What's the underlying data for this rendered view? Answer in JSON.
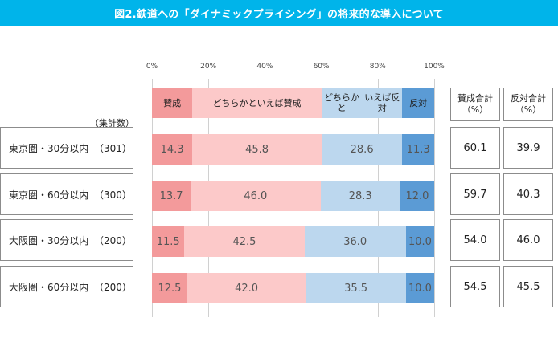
{
  "title": "図2.鉄道への「ダイナミックプライシング」の将来的な導入について",
  "sample_header": "（集計数）",
  "colors": {
    "title_bg": "#00b4ea",
    "agree": "#f39a9b",
    "lean_agree": "#fcc9c9",
    "lean_oppose": "#bcd7ee",
    "oppose": "#5b9bd5"
  },
  "summary_headers": [
    {
      "line1": "賛成合計",
      "line2": "（%）"
    },
    {
      "line1": "反対合計",
      "line2": "（%）"
    }
  ],
  "chart_data": {
    "type": "bar",
    "orientation": "horizontal",
    "stacked": true,
    "title": "図2.鉄道への「ダイナミックプライシング」の将来的な導入について",
    "xlim": [
      0,
      100
    ],
    "xticks": [
      "0%",
      "20%",
      "40%",
      "60%",
      "80%",
      "100%"
    ],
    "categories": [
      {
        "name": "東京圏・30分以内",
        "n": "（301）"
      },
      {
        "name": "東京圏・60分以内",
        "n": "（300）"
      },
      {
        "name": "大阪圏・30分以内",
        "n": "（200）"
      },
      {
        "name": "大阪圏・60分以内",
        "n": "（200）"
      }
    ],
    "series": [
      {
        "name": "賛成",
        "legend_lines": [
          "賛成"
        ],
        "values": [
          14.3,
          13.7,
          11.5,
          12.5
        ],
        "color": "#f39a9b"
      },
      {
        "name": "どちらかといえば賛成",
        "legend_lines": [
          "どちらかと",
          "いえば賛成"
        ],
        "values": [
          45.8,
          46.0,
          42.5,
          42.0
        ],
        "color": "#fcc9c9"
      },
      {
        "name": "どちらかといえば反対",
        "legend_lines": [
          "どちらかと",
          "いえば反対"
        ],
        "values": [
          28.6,
          28.3,
          36.0,
          35.5
        ],
        "color": "#bcd7ee"
      },
      {
        "name": "反対",
        "legend_lines": [
          "反対"
        ],
        "values": [
          11.3,
          12.0,
          10.0,
          10.0
        ],
        "color": "#5b9bd5"
      }
    ],
    "labels": [
      [
        "14.3",
        "45.8",
        "28.6",
        "11.3"
      ],
      [
        "13.7",
        "46.0",
        "28.3",
        "12.0"
      ],
      [
        "11.5",
        "42.5",
        "36.0",
        "10.0"
      ],
      [
        "12.5",
        "42.0",
        "35.5",
        "10.0"
      ]
    ],
    "totals": {
      "agree": [
        "60.1",
        "59.7",
        "54.0",
        "54.5"
      ],
      "oppose": [
        "39.9",
        "40.3",
        "46.0",
        "45.5"
      ]
    }
  }
}
